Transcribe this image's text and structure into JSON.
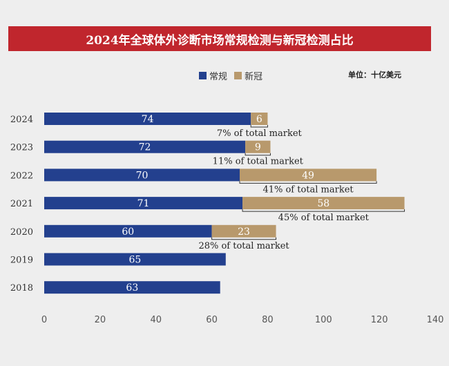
{
  "title": "2024年全球体外诊断市场常规检测与新冠检测占比",
  "unit_label": "单位：十亿美元",
  "chart_data": {
    "type": "bar",
    "orientation": "horizontal",
    "stacked": true,
    "categories": [
      "2024",
      "2023",
      "2022",
      "2021",
      "2020",
      "2019",
      "2018"
    ],
    "series": [
      {
        "name": "常规",
        "color": "#23408e",
        "values": [
          74,
          72,
          70,
          71,
          60,
          65,
          63
        ]
      },
      {
        "name": "新冠",
        "color": "#b8996c",
        "values": [
          6,
          9,
          49,
          58,
          23,
          null,
          null
        ]
      }
    ],
    "annotations": [
      "7% of total market",
      "11% of total market",
      "41% of total market",
      "45% of total market",
      "28% of total market",
      null,
      null
    ],
    "xlim": [
      0,
      140
    ],
    "xticks": [
      0,
      20,
      40,
      60,
      80,
      100,
      120,
      140
    ],
    "legend_position": "top",
    "grid": false
  }
}
